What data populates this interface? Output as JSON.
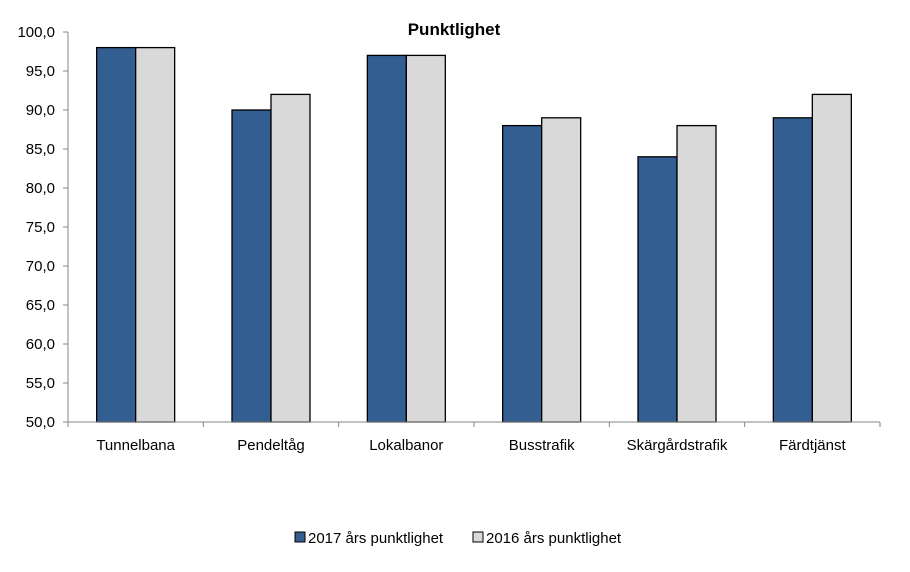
{
  "chart_data": {
    "type": "bar",
    "title": "Punktlighet",
    "xlabel": "",
    "ylabel": "",
    "ylim": [
      50,
      100
    ],
    "yticks": [
      "50,0",
      "55,0",
      "60,0",
      "65,0",
      "70,0",
      "75,0",
      "80,0",
      "85,0",
      "90,0",
      "95,0",
      "100,0"
    ],
    "categories": [
      "Tunnelbana",
      "Pendeltåg",
      "Lokalbanor",
      "Busstrafik",
      "Skärgårdstrafik",
      "Färdtjänst"
    ],
    "series": [
      {
        "name": "2017 års punktlighet",
        "color": "#335e92",
        "values": [
          98,
          90,
          97,
          88,
          84,
          89
        ]
      },
      {
        "name": "2016 års punktlighet",
        "color": "#d9d9d9",
        "values": [
          98,
          92,
          97,
          89,
          88,
          92
        ]
      }
    ],
    "grid": false,
    "legend_position": "bottom"
  }
}
